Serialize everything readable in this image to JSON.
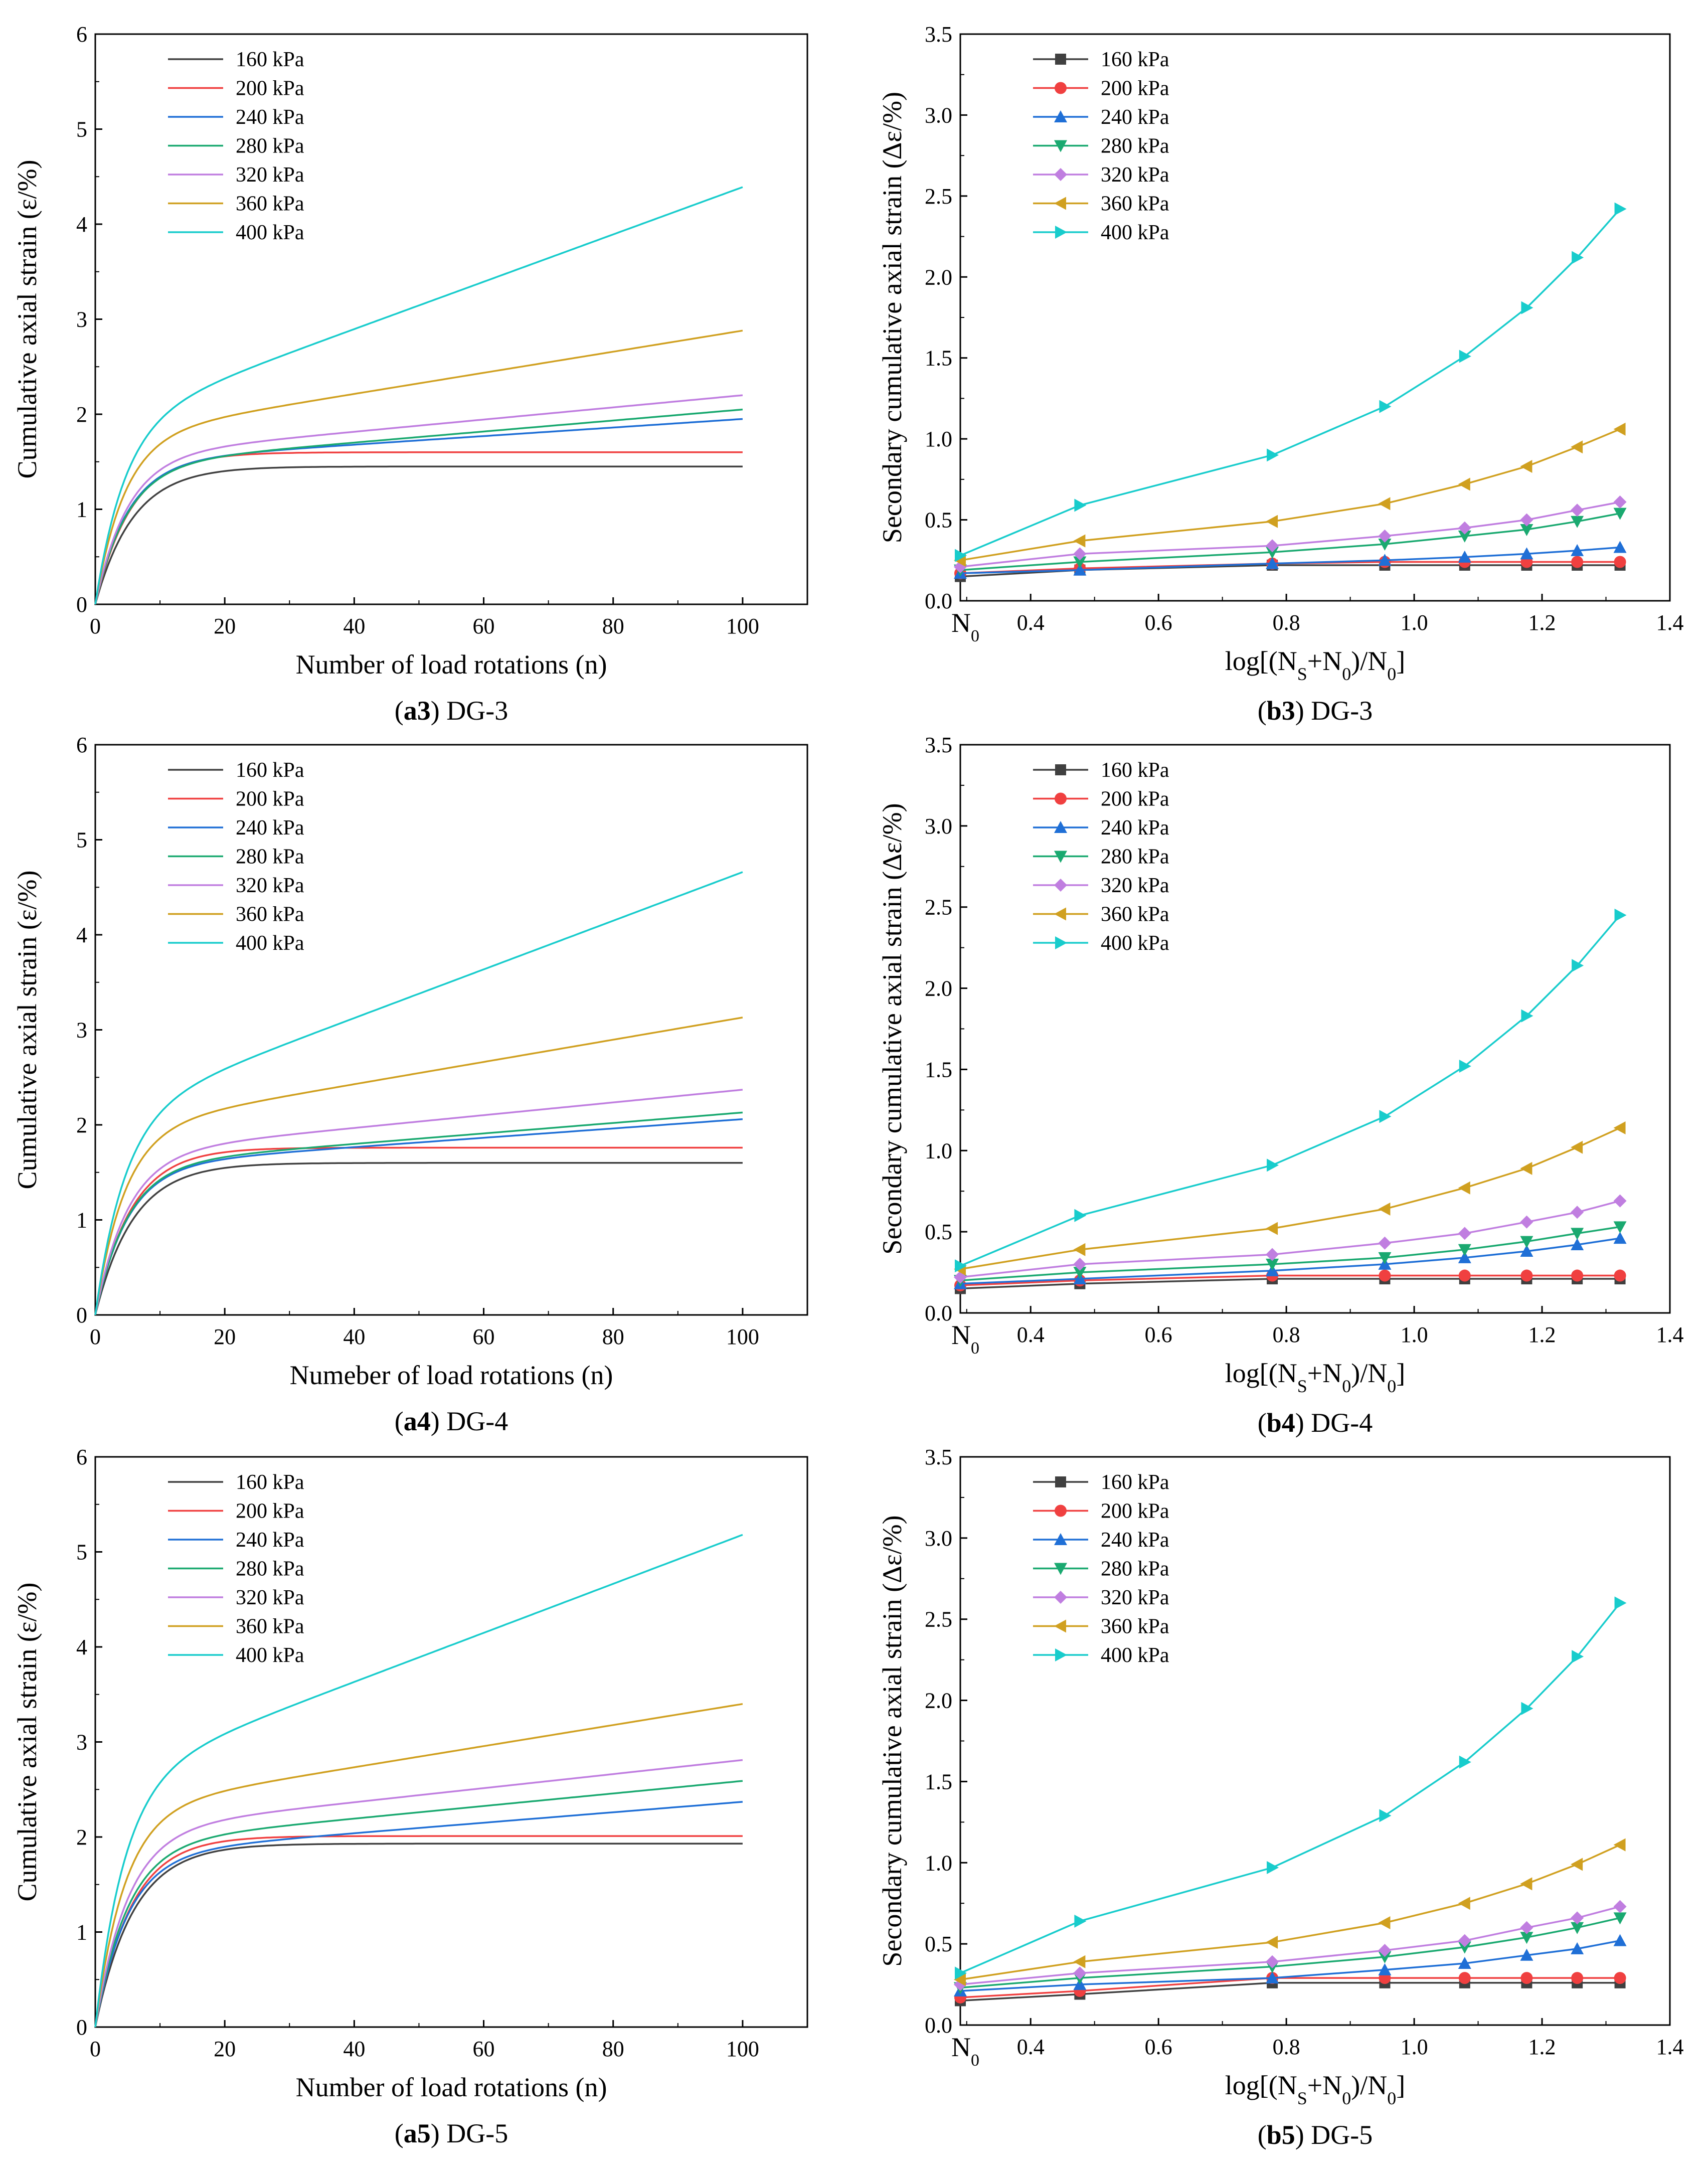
{
  "colors": {
    "160 kPa": "#404040",
    "200 kPa": "#f04040",
    "240 kPa": "#1f6fd6",
    "280 kPa": "#1aa970",
    "320 kPa": "#c07ee0",
    "360 kPa": "#d0a020",
    "400 kPa": "#18cccc"
  },
  "panels": [
    {
      "id": "a3",
      "caption_letter": "a3",
      "caption_rest": " DG-3",
      "chart_data": {
        "type": "line",
        "title": "",
        "xlabel": "Number of load rotations (n)",
        "ylabel": "Cumulative axial strain (ε/%)",
        "xlim": [
          0,
          110
        ],
        "ylim": [
          0,
          6
        ],
        "xticks": [
          0,
          20,
          40,
          60,
          80,
          100
        ],
        "yticks": [
          0,
          1,
          2,
          3,
          4,
          5,
          6
        ],
        "legend": "top-left",
        "curve_model": "exp_plus_linear",
        "series": [
          {
            "name": "160 kPa",
            "plateau": 1.45,
            "k": 0.17,
            "slope": 0.0
          },
          {
            "name": "200 kPa",
            "plateau": 1.6,
            "k": 0.18,
            "slope": 0.0
          },
          {
            "name": "240 kPa",
            "plateau": 1.5,
            "k": 0.2,
            "slope": 0.0045
          },
          {
            "name": "280 kPa",
            "plateau": 1.47,
            "k": 0.2,
            "slope": 0.0058
          },
          {
            "name": "320 kPa",
            "plateau": 1.56,
            "k": 0.2,
            "slope": 0.0064
          },
          {
            "name": "360 kPa",
            "plateau": 1.77,
            "k": 0.22,
            "slope": 0.0111
          },
          {
            "name": "400 kPa",
            "plateau": 1.9,
            "k": 0.22,
            "slope": 0.0249
          }
        ]
      }
    },
    {
      "id": "b3",
      "caption_letter": "b3",
      "caption_rest": " DG-3",
      "chart_data": {
        "type": "line",
        "title": "",
        "xlabel": "log[(N<tspan baseline-shift='sub' font-size='36'>S</tspan>+N<tspan baseline-shift='sub' font-size='36'>0</tspan>)/N<tspan baseline-shift='sub' font-size='36'>0</tspan>]",
        "ylabel": "Secondary cumulative axial strain (Δε/%)",
        "xlim": [
          0.29,
          1.4
        ],
        "ylim": [
          0,
          3.5
        ],
        "xticks": [
          0.4,
          0.6,
          0.8,
          1.0,
          1.2,
          1.4
        ],
        "xtick_labels": [
          "0.4",
          "0.6",
          "0.8",
          "1.0",
          "1.2",
          "1.4"
        ],
        "x_origin_label": "N<tspan baseline-shift='sub' font-size='34'>0</tspan>",
        "yticks": [
          0,
          0.5,
          1.0,
          1.5,
          2.0,
          2.5,
          3.0,
          3.5
        ],
        "ytick_labels": [
          "0.0",
          "0.5",
          "1.0",
          "1.5",
          "2.0",
          "2.5",
          "3.0",
          "3.5"
        ],
        "legend": "top-left",
        "x": [
          0.29,
          0.477,
          0.778,
          0.954,
          1.079,
          1.176,
          1.255,
          1.322
        ],
        "series": [
          {
            "name": "160 kPa",
            "marker": "square",
            "values": [
              0.15,
              0.19,
              0.22,
              0.22,
              0.22,
              0.22,
              0.22,
              0.22
            ]
          },
          {
            "name": "200 kPa",
            "marker": "circle",
            "values": [
              0.17,
              0.2,
              0.23,
              0.24,
              0.24,
              0.24,
              0.24,
              0.24
            ]
          },
          {
            "name": "240 kPa",
            "marker": "triangle-up",
            "values": [
              0.17,
              0.19,
              0.23,
              0.25,
              0.27,
              0.29,
              0.31,
              0.33
            ]
          },
          {
            "name": "280 kPa",
            "marker": "triangle-down",
            "values": [
              0.19,
              0.24,
              0.3,
              0.35,
              0.4,
              0.44,
              0.49,
              0.54
            ]
          },
          {
            "name": "320 kPa",
            "marker": "diamond",
            "values": [
              0.21,
              0.29,
              0.34,
              0.4,
              0.45,
              0.5,
              0.56,
              0.61
            ]
          },
          {
            "name": "360 kPa",
            "marker": "triangle-left",
            "values": [
              0.25,
              0.37,
              0.49,
              0.6,
              0.72,
              0.83,
              0.95,
              1.06
            ]
          },
          {
            "name": "400 kPa",
            "marker": "triangle-right",
            "values": [
              0.28,
              0.59,
              0.9,
              1.2,
              1.51,
              1.81,
              2.12,
              2.42
            ]
          }
        ]
      }
    },
    {
      "id": "a4",
      "caption_letter": "a4",
      "caption_rest": " DG-4",
      "chart_data": {
        "type": "line",
        "title": "",
        "xlabel": "Numeber of load rotations (n)",
        "ylabel": "Cumulative axial strain (ε/%)",
        "xlim": [
          0,
          110
        ],
        "ylim": [
          0,
          6
        ],
        "xticks": [
          0,
          20,
          40,
          60,
          80,
          100
        ],
        "yticks": [
          0,
          1,
          2,
          3,
          4,
          5,
          6
        ],
        "legend": "top-left",
        "curve_model": "exp_plus_linear",
        "series": [
          {
            "name": "160 kPa",
            "plateau": 1.6,
            "k": 0.17,
            "slope": 0.0
          },
          {
            "name": "200 kPa",
            "plateau": 1.76,
            "k": 0.18,
            "slope": 0.0
          },
          {
            "name": "240 kPa",
            "plateau": 1.57,
            "k": 0.2,
            "slope": 0.0049
          },
          {
            "name": "280 kPa",
            "plateau": 1.58,
            "k": 0.2,
            "slope": 0.0055
          },
          {
            "name": "320 kPa",
            "plateau": 1.7,
            "k": 0.2,
            "slope": 0.0067
          },
          {
            "name": "360 kPa",
            "plateau": 1.96,
            "k": 0.22,
            "slope": 0.0117
          },
          {
            "name": "400 kPa",
            "plateau": 2.1,
            "k": 0.22,
            "slope": 0.0256
          }
        ]
      }
    },
    {
      "id": "b4",
      "caption_letter": "b4",
      "caption_rest": " DG-4",
      "chart_data": {
        "type": "line",
        "title": "",
        "xlabel": "log[(N<tspan baseline-shift='sub' font-size='36'>S</tspan>+N<tspan baseline-shift='sub' font-size='36'>0</tspan>)/N<tspan baseline-shift='sub' font-size='36'>0</tspan>]",
        "ylabel": "Secondary cumulative axial strain (Δε/%)",
        "xlim": [
          0.29,
          1.4
        ],
        "ylim": [
          0,
          3.5
        ],
        "xticks": [
          0.4,
          0.6,
          0.8,
          1.0,
          1.2,
          1.4
        ],
        "xtick_labels": [
          "0.4",
          "0.6",
          "0.8",
          "1.0",
          "1.2",
          "1.4"
        ],
        "x_origin_label": "N<tspan baseline-shift='sub' font-size='34'>0</tspan>",
        "yticks": [
          0,
          0.5,
          1.0,
          1.5,
          2.0,
          2.5,
          3.0,
          3.5
        ],
        "ytick_labels": [
          "0.0",
          "0.5",
          "1.0",
          "1.5",
          "2.0",
          "2.5",
          "3.0",
          "3.5"
        ],
        "legend": "top-left",
        "x": [
          0.29,
          0.477,
          0.778,
          0.954,
          1.079,
          1.176,
          1.255,
          1.322
        ],
        "series": [
          {
            "name": "160 kPa",
            "marker": "square",
            "values": [
              0.15,
              0.18,
              0.21,
              0.21,
              0.21,
              0.21,
              0.21,
              0.21
            ]
          },
          {
            "name": "200 kPa",
            "marker": "circle",
            "values": [
              0.17,
              0.2,
              0.23,
              0.23,
              0.23,
              0.23,
              0.23,
              0.23
            ]
          },
          {
            "name": "240 kPa",
            "marker": "triangle-up",
            "values": [
              0.18,
              0.21,
              0.26,
              0.3,
              0.34,
              0.38,
              0.42,
              0.46
            ]
          },
          {
            "name": "280 kPa",
            "marker": "triangle-down",
            "values": [
              0.2,
              0.25,
              0.3,
              0.34,
              0.39,
              0.44,
              0.49,
              0.53
            ]
          },
          {
            "name": "320 kPa",
            "marker": "diamond",
            "values": [
              0.22,
              0.3,
              0.36,
              0.43,
              0.49,
              0.56,
              0.62,
              0.69
            ]
          },
          {
            "name": "360 kPa",
            "marker": "triangle-left",
            "values": [
              0.27,
              0.39,
              0.52,
              0.64,
              0.77,
              0.89,
              1.02,
              1.14
            ]
          },
          {
            "name": "400 kPa",
            "marker": "triangle-right",
            "values": [
              0.29,
              0.6,
              0.91,
              1.21,
              1.52,
              1.83,
              2.14,
              2.45
            ]
          }
        ]
      }
    },
    {
      "id": "a5",
      "caption_letter": "a5",
      "caption_rest": " DG-5",
      "chart_data": {
        "type": "line",
        "title": "",
        "xlabel": "Number of load rotations (n)",
        "ylabel": "Cumulative axial strain (ε/%)",
        "xlim": [
          0,
          110
        ],
        "ylim": [
          0,
          6
        ],
        "xticks": [
          0,
          20,
          40,
          60,
          80,
          100
        ],
        "yticks": [
          0,
          1,
          2,
          3,
          4,
          5,
          6
        ],
        "legend": "top-left",
        "curve_model": "exp_plus_linear",
        "series": [
          {
            "name": "160 kPa",
            "plateau": 1.93,
            "k": 0.17,
            "slope": 0.0
          },
          {
            "name": "200 kPa",
            "plateau": 2.01,
            "k": 0.18,
            "slope": 0.0
          },
          {
            "name": "240 kPa",
            "plateau": 1.82,
            "k": 0.2,
            "slope": 0.0055
          },
          {
            "name": "280 kPa",
            "plateau": 1.93,
            "k": 0.2,
            "slope": 0.0066
          },
          {
            "name": "320 kPa",
            "plateau": 2.07,
            "k": 0.2,
            "slope": 0.0074
          },
          {
            "name": "360 kPa",
            "plateau": 2.29,
            "k": 0.22,
            "slope": 0.0111
          },
          {
            "name": "400 kPa",
            "plateau": 2.6,
            "k": 0.22,
            "slope": 0.0258
          }
        ]
      }
    },
    {
      "id": "b5",
      "caption_letter": "b5",
      "caption_rest": " DG-5",
      "chart_data": {
        "type": "line",
        "title": "",
        "xlabel": "log[(N<tspan baseline-shift='sub' font-size='36'>S</tspan>+N<tspan baseline-shift='sub' font-size='36'>0</tspan>)/N<tspan baseline-shift='sub' font-size='36'>0</tspan>]",
        "ylabel": "Secondary cumulative axial strain (Δε/%)",
        "xlim": [
          0.29,
          1.4
        ],
        "ylim": [
          0,
          3.5
        ],
        "xticks": [
          0.4,
          0.6,
          0.8,
          1.0,
          1.2,
          1.4
        ],
        "xtick_labels": [
          "0.4",
          "0.6",
          "0.8",
          "1.0",
          "1.2",
          "1.4"
        ],
        "x_origin_label": "N<tspan baseline-shift='sub' font-size='34'>0</tspan>",
        "yticks": [
          0,
          0.5,
          1.0,
          1.5,
          2.0,
          2.5,
          3.0,
          3.5
        ],
        "ytick_labels": [
          "0.0",
          "0.5",
          "1.0",
          "1.5",
          "2.0",
          "2.5",
          "3.0",
          "3.5"
        ],
        "legend": "top-left",
        "x": [
          0.29,
          0.477,
          0.778,
          0.954,
          1.079,
          1.176,
          1.255,
          1.322
        ],
        "series": [
          {
            "name": "160 kPa",
            "marker": "square",
            "values": [
              0.15,
              0.19,
              0.26,
              0.26,
              0.26,
              0.26,
              0.26,
              0.26
            ]
          },
          {
            "name": "200 kPa",
            "marker": "circle",
            "values": [
              0.17,
              0.21,
              0.29,
              0.29,
              0.29,
              0.29,
              0.29,
              0.29
            ]
          },
          {
            "name": "240 kPa",
            "marker": "triangle-up",
            "values": [
              0.21,
              0.25,
              0.29,
              0.34,
              0.38,
              0.43,
              0.47,
              0.52
            ]
          },
          {
            "name": "280 kPa",
            "marker": "triangle-down",
            "values": [
              0.23,
              0.29,
              0.36,
              0.42,
              0.48,
              0.54,
              0.6,
              0.66
            ]
          },
          {
            "name": "320 kPa",
            "marker": "diamond",
            "values": [
              0.25,
              0.32,
              0.39,
              0.46,
              0.52,
              0.6,
              0.66,
              0.73
            ]
          },
          {
            "name": "360 kPa",
            "marker": "triangle-left",
            "values": [
              0.28,
              0.39,
              0.51,
              0.63,
              0.75,
              0.87,
              0.99,
              1.11
            ]
          },
          {
            "name": "400 kPa",
            "marker": "triangle-right",
            "values": [
              0.32,
              0.64,
              0.97,
              1.29,
              1.62,
              1.95,
              2.27,
              2.6
            ]
          }
        ]
      }
    }
  ]
}
